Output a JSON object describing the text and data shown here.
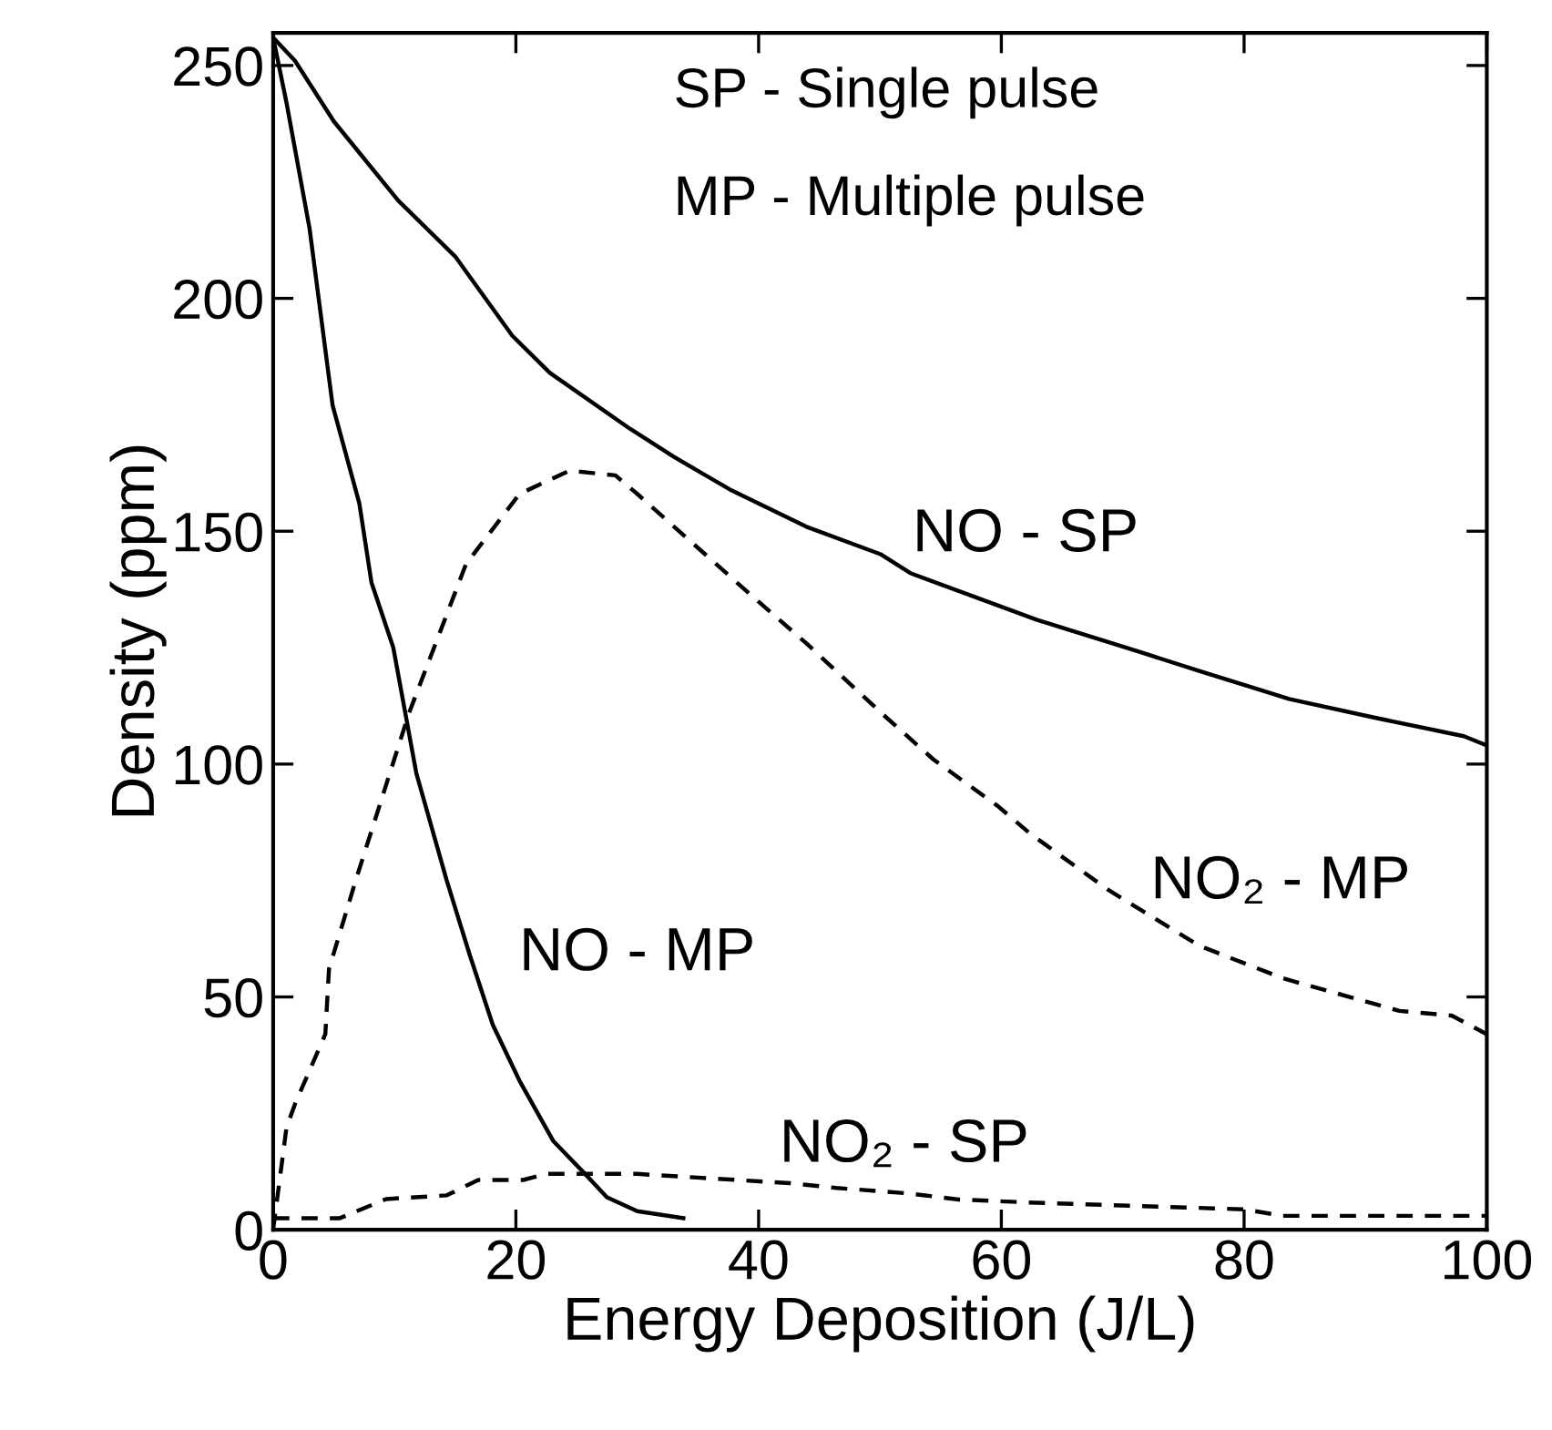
{
  "chart_data": {
    "type": "line",
    "xlabel": "Energy Deposition (J/L)",
    "ylabel": "Density (ppm)",
    "xlim": [
      0,
      100
    ],
    "ylim": [
      0,
      257
    ],
    "xticks": [
      0,
      20,
      40,
      60,
      80,
      100
    ],
    "yticks": [
      0,
      50,
      100,
      150,
      200,
      250
    ],
    "grid": false,
    "legend": false,
    "marker": "none",
    "series": [
      {
        "name": "NO - SP",
        "color": "#000000",
        "line_style": "solid",
        "x": [
          0,
          1.8,
          5,
          10.3,
          15,
          19.7,
          22.8,
          29.4,
          33,
          37.6,
          43.9,
          50.1,
          52.5,
          62.9,
          71.5,
          76.3,
          83.7,
          90.7,
          98.1,
          100
        ],
        "values": [
          256,
          251,
          238,
          221,
          209,
          192,
          184,
          172,
          166,
          159,
          151,
          145,
          141,
          131,
          124,
          120,
          114,
          110,
          106,
          104
        ]
      },
      {
        "name": "NO - MP",
        "color": "#000000",
        "line_style": "solid",
        "x": [
          0,
          1.1,
          3,
          4.9,
          7.1,
          8.1,
          9.9,
          11.8,
          14.3,
          16.2,
          18.1,
          20.3,
          23.1,
          25.7,
          27.5,
          30,
          33.8
        ],
        "values": [
          256,
          242,
          215,
          177,
          156,
          139,
          125,
          98,
          75,
          59,
          44,
          32,
          19,
          12,
          7,
          4,
          2.5
        ]
      },
      {
        "name": "NO₂ - MP",
        "color": "#000000",
        "line_style": "dashed",
        "x": [
          0,
          1.1,
          1.8,
          4.3,
          4.6,
          6.8,
          11.2,
          15.9,
          20.3,
          24.4,
          28.2,
          30,
          39.5,
          43.9,
          50.1,
          54.4,
          59.7,
          62.4,
          68.8,
          76.3,
          83.2,
          92.8,
          97.1,
          100
        ],
        "values": [
          0,
          22,
          27,
          42,
          56,
          75,
          111,
          143,
          158,
          163,
          162,
          158,
          136,
          126,
          111,
          101,
          91,
          85,
          73,
          61,
          54,
          47,
          46,
          42
        ]
      },
      {
        "name": "NO₂ - SP",
        "color": "#000000",
        "line_style": "dashed",
        "x": [
          0,
          5.5,
          9.3,
          14.3,
          16.9,
          20.6,
          22.5,
          30,
          42.6,
          46.4,
          52.4,
          56.5,
          62.9,
          80,
          83.2,
          100
        ],
        "values": [
          2.5,
          2.5,
          6.6,
          7.4,
          10.7,
          10.7,
          12,
          12,
          10,
          9,
          7.8,
          6.5,
          5.8,
          4.4,
          3,
          3
        ]
      }
    ],
    "annotations": [
      "SP - Single pulse",
      "MP - Multiple pulse"
    ]
  }
}
